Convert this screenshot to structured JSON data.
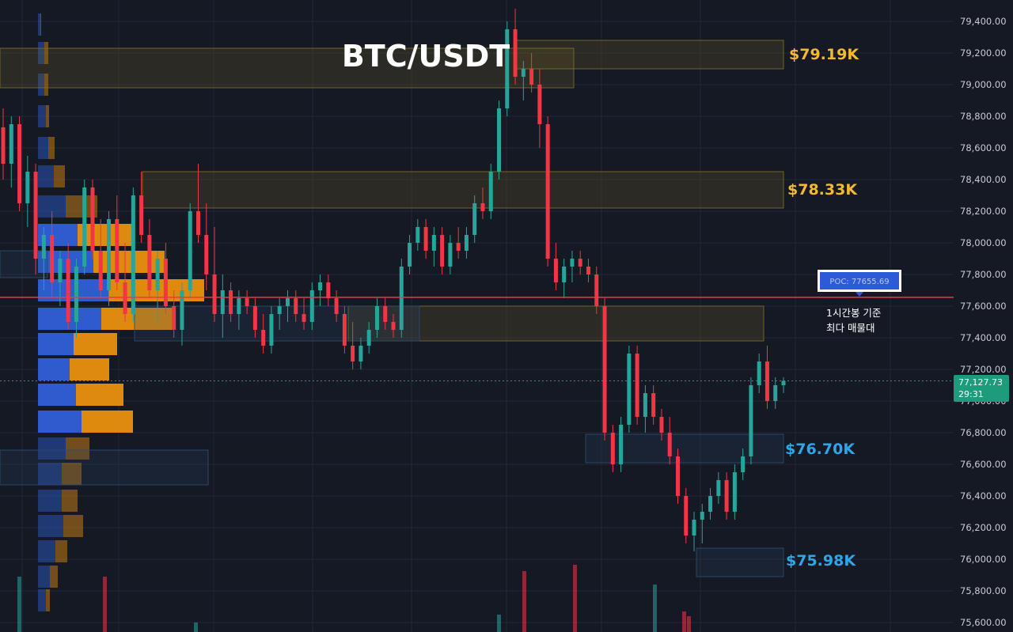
{
  "title": "BTC/USDT",
  "colors": {
    "background": "#151924",
    "grid": "#232733",
    "up": "#26a69a",
    "down": "#f23645",
    "poc_line": "#f23645",
    "resistance_label": "#f5b82e",
    "support_label": "#2ea6e8",
    "vp_blue": "#2f5fd8",
    "vp_orange": "#e8900f",
    "price_tag": "#1e9b7a",
    "poc_badge": "#2d5ad6"
  },
  "price_axis": {
    "ticks": [
      "79,400.00",
      "79,200.00",
      "79,000.00",
      "78,800.00",
      "78,600.00",
      "78,400.00",
      "78,200.00",
      "78,000.00",
      "77,800.00",
      "77,600.00",
      "77,400.00",
      "77,200.00",
      "77,000.00",
      "76,800.00",
      "76,600.00",
      "76,400.00",
      "76,200.00",
      "76,000.00",
      "75,800.00",
      "75,600.00"
    ],
    "current_price": "77,127.73",
    "countdown": "29:31"
  },
  "poc": {
    "label": "POC: 77655.69",
    "note_line1": "1시간봉 기준",
    "note_line2": "최다 매물대"
  },
  "zone_labels": {
    "z1": "$79.19K",
    "z2": "$78.33K",
    "z3": "$76.70K",
    "z4": "$75.98K"
  },
  "chart_data": {
    "type": "candlestick",
    "title": "BTC/USDT",
    "ylim": [
      75550,
      79480
    ],
    "y_ticks": [
      79400,
      79200,
      79000,
      78800,
      78600,
      78400,
      78200,
      78000,
      77800,
      77600,
      77400,
      77200,
      77000,
      76800,
      76600,
      76400,
      76200,
      76000,
      75800,
      75600
    ],
    "current_price": 77127.73,
    "poc": 77655.69,
    "zones": [
      {
        "type": "resistance",
        "low": 79100,
        "high": 79280,
        "label": "$79.19K"
      },
      {
        "type": "resistance",
        "low": 78220,
        "high": 78450,
        "label": "$78.33K"
      },
      {
        "type": "resistance",
        "low": 77380,
        "high": 77600,
        "label": ""
      },
      {
        "type": "support",
        "low": 76610,
        "high": 76790,
        "label": "$76.70K"
      },
      {
        "type": "support",
        "low": 75890,
        "high": 76070,
        "label": "$75.98K"
      }
    ],
    "candles": [
      [
        78730,
        78850,
        78400,
        78500
      ],
      [
        78500,
        78800,
        78350,
        78750
      ],
      [
        78750,
        78800,
        78200,
        78250
      ],
      [
        78250,
        78550,
        78100,
        78450
      ],
      [
        78450,
        78500,
        77800,
        77900
      ],
      [
        77900,
        78100,
        77700,
        78050
      ],
      [
        78050,
        78200,
        77650,
        77750
      ],
      [
        77750,
        77950,
        77600,
        77900
      ],
      [
        77900,
        78000,
        77450,
        77500
      ],
      [
        77500,
        77900,
        77400,
        77850
      ],
      [
        77850,
        78400,
        77800,
        78350
      ],
      [
        78350,
        78400,
        77900,
        77950
      ],
      [
        77950,
        78150,
        77650,
        77700
      ],
      [
        77700,
        78200,
        77600,
        78150
      ],
      [
        78150,
        78300,
        77700,
        77750
      ],
      [
        77750,
        78000,
        77500,
        77550
      ],
      [
        77550,
        78350,
        77500,
        78300
      ],
      [
        78300,
        78450,
        78000,
        78050
      ],
      [
        78050,
        78150,
        77650,
        77700
      ],
      [
        77700,
        77950,
        77500,
        77900
      ],
      [
        77900,
        78000,
        77550,
        77600
      ],
      [
        77600,
        77700,
        77400,
        77450
      ],
      [
        77450,
        77750,
        77350,
        77700
      ],
      [
        77700,
        78250,
        77650,
        78200
      ],
      [
        78200,
        78500,
        78000,
        78050
      ],
      [
        78050,
        78250,
        77700,
        77800
      ],
      [
        77800,
        78100,
        77500,
        77550
      ],
      [
        77550,
        77800,
        77400,
        77700
      ],
      [
        77700,
        77750,
        77500,
        77550
      ],
      [
        77550,
        77700,
        77450,
        77650
      ],
      [
        77650,
        77700,
        77550,
        77600
      ],
      [
        77600,
        77650,
        77400,
        77450
      ],
      [
        77450,
        77550,
        77300,
        77350
      ],
      [
        77350,
        77600,
        77300,
        77550
      ],
      [
        77550,
        77650,
        77450,
        77600
      ],
      [
        77600,
        77700,
        77500,
        77650
      ],
      [
        77650,
        77700,
        77500,
        77550
      ],
      [
        77550,
        77650,
        77450,
        77500
      ],
      [
        77500,
        77750,
        77450,
        77700
      ],
      [
        77700,
        77800,
        77600,
        77750
      ],
      [
        77750,
        77800,
        77600,
        77650
      ],
      [
        77650,
        77700,
        77500,
        77550
      ],
      [
        77550,
        77600,
        77300,
        77350
      ],
      [
        77350,
        77500,
        77200,
        77250
      ],
      [
        77250,
        77400,
        77200,
        77350
      ],
      [
        77350,
        77500,
        77300,
        77450
      ],
      [
        77450,
        77650,
        77400,
        77600
      ],
      [
        77600,
        77650,
        77450,
        77500
      ],
      [
        77500,
        77550,
        77400,
        77450
      ],
      [
        77450,
        77900,
        77400,
        77850
      ],
      [
        77850,
        78050,
        77800,
        78000
      ],
      [
        78000,
        78150,
        77950,
        78100
      ],
      [
        78100,
        78150,
        77900,
        77950
      ],
      [
        77950,
        78100,
        77850,
        78050
      ],
      [
        78050,
        78100,
        77800,
        77850
      ],
      [
        77850,
        78050,
        77800,
        78000
      ],
      [
        78000,
        78100,
        77900,
        77950
      ],
      [
        77950,
        78100,
        77900,
        78050
      ],
      [
        78050,
        78300,
        78000,
        78250
      ],
      [
        78250,
        78350,
        78150,
        78200
      ],
      [
        78200,
        78500,
        78150,
        78450
      ],
      [
        78450,
        78900,
        78400,
        78850
      ],
      [
        78850,
        79400,
        78800,
        79350
      ],
      [
        79350,
        79480,
        79000,
        79050
      ],
      [
        79050,
        79150,
        78900,
        79100
      ],
      [
        79100,
        79200,
        78950,
        79000
      ],
      [
        79000,
        79100,
        78600,
        78750
      ],
      [
        78750,
        78800,
        77850,
        77900
      ],
      [
        77900,
        78000,
        77700,
        77750
      ],
      [
        77750,
        77900,
        77650,
        77850
      ],
      [
        77850,
        77950,
        77750,
        77900
      ],
      [
        77900,
        77950,
        77800,
        77850
      ],
      [
        77850,
        77900,
        77750,
        77800
      ],
      [
        77800,
        77850,
        77550,
        77600
      ],
      [
        77600,
        77650,
        76750,
        76800
      ],
      [
        76800,
        76850,
        76550,
        76600
      ],
      [
        76600,
        76900,
        76550,
        76850
      ],
      [
        76850,
        77350,
        76800,
        77300
      ],
      [
        77300,
        77350,
        76850,
        76900
      ],
      [
        76900,
        77100,
        76800,
        77050
      ],
      [
        77050,
        77100,
        76850,
        76900
      ],
      [
        76900,
        76950,
        76750,
        76800
      ],
      [
        76800,
        76900,
        76600,
        76650
      ],
      [
        76650,
        76700,
        76350,
        76400
      ],
      [
        76400,
        76450,
        76100,
        76150
      ],
      [
        76150,
        76300,
        76050,
        76250
      ],
      [
        76250,
        76350,
        76100,
        76300
      ],
      [
        76300,
        76450,
        76250,
        76400
      ],
      [
        76400,
        76550,
        76350,
        76500
      ],
      [
        76500,
        76550,
        76250,
        76300
      ],
      [
        76300,
        76600,
        76250,
        76550
      ],
      [
        76550,
        76700,
        76500,
        76650
      ],
      [
        76650,
        77150,
        76600,
        77100
      ],
      [
        77100,
        77300,
        77050,
        77250
      ],
      [
        77250,
        77350,
        76950,
        77000
      ],
      [
        77000,
        77150,
        76950,
        77100
      ],
      [
        77100,
        77150,
        77050,
        77127.73
      ]
    ]
  }
}
